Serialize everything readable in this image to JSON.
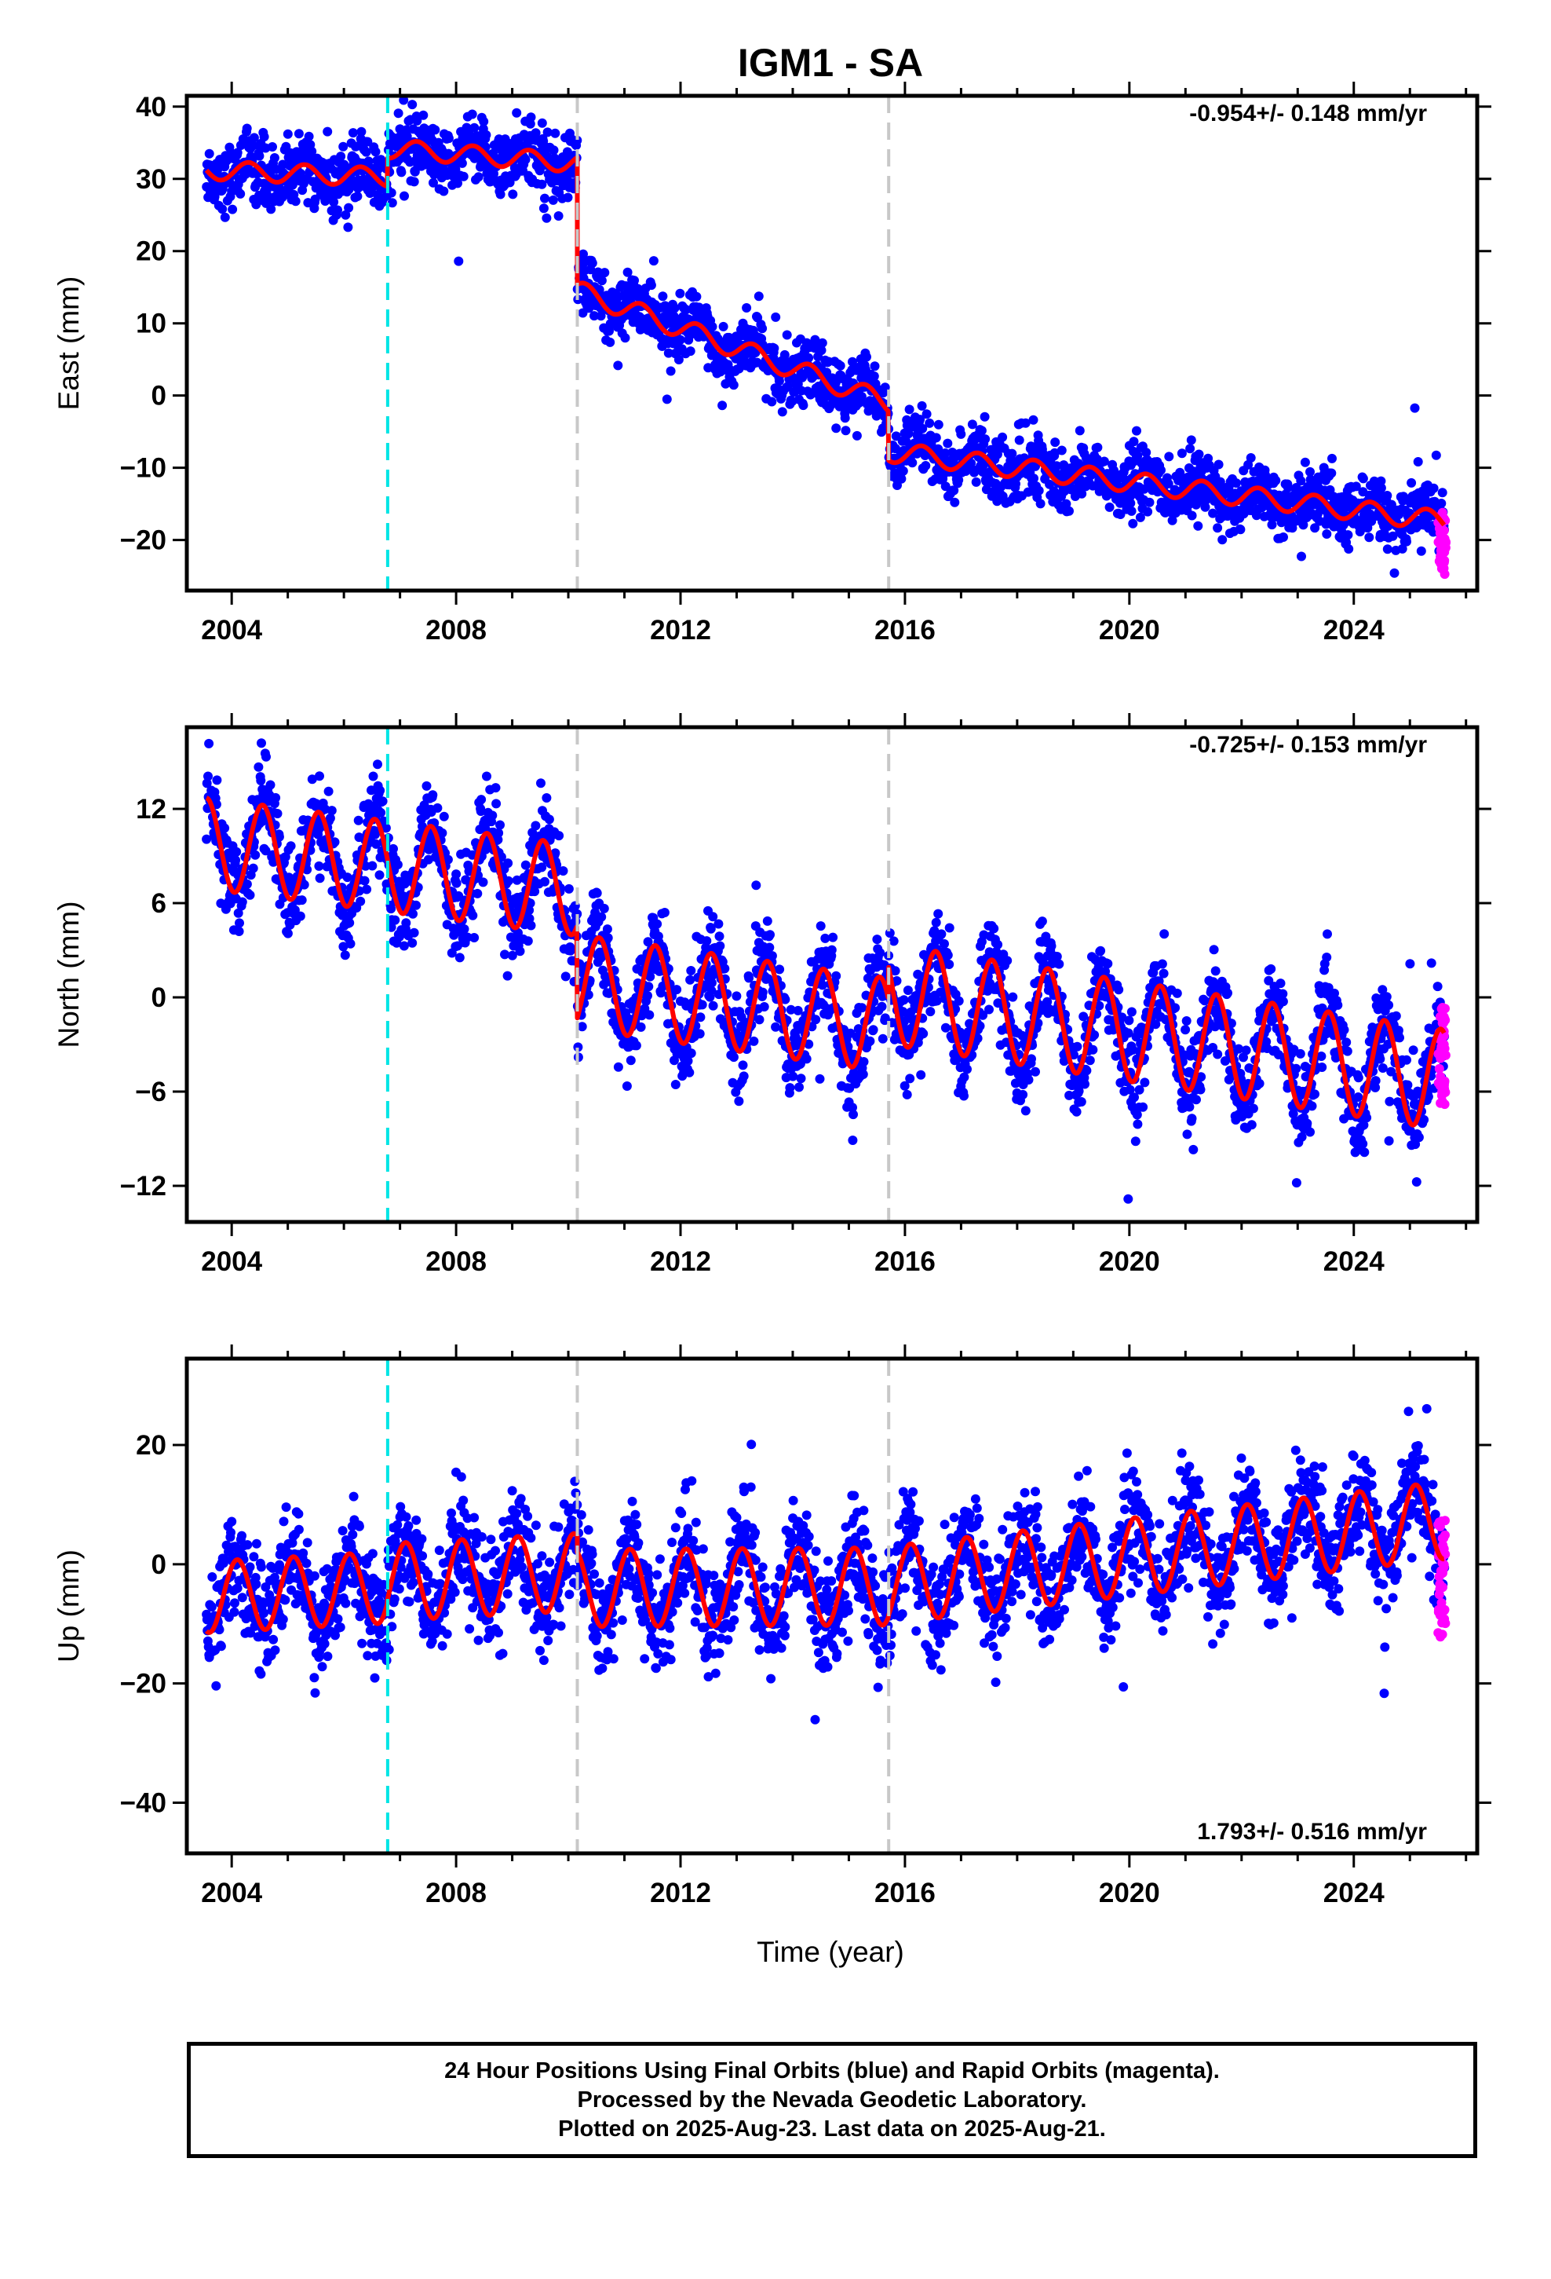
{
  "figure": {
    "title": "IGM1 - SA",
    "xlabel": "Time (year)",
    "footer": [
      "24 Hour Positions Using Final Orbits (blue) and Rapid Orbits (magenta).",
      "Processed by the Nevada Geodetic Laboratory.",
      "Plotted on 2025-Aug-23. Last data on 2025-Aug-21."
    ],
    "colors": {
      "final_orbits": "#0000ff",
      "rapid_orbits": "#ff00ff",
      "model": "#ff0000",
      "antenna_change": "#00e5e5",
      "equipment_change": "#c8c8c8"
    }
  },
  "chart_data": [
    {
      "type": "scatter",
      "ylabel": "East (mm)",
      "rate": "-0.954+/- 0.148 mm/yr",
      "xlim": [
        2003.2,
        2026.2
      ],
      "ylim": [
        -27,
        41.5
      ],
      "xticks": [
        2004,
        2008,
        2012,
        2016,
        2020,
        2024
      ],
      "xtick_labels": [
        "2004",
        "2008",
        "2012",
        "2016",
        "2020",
        "2024"
      ],
      "yticks": [
        -20,
        -10,
        0,
        10,
        20,
        30,
        40
      ],
      "ytick_labels": [
        "−20",
        "−10",
        "0",
        "10",
        "20",
        "30",
        "40"
      ],
      "vlines": [
        {
          "x": 2006.78,
          "style": "antenna"
        },
        {
          "x": 2010.16,
          "style": "equipment"
        },
        {
          "x": 2015.71,
          "style": "equipment"
        }
      ],
      "model_segments": [
        {
          "x0": 2003.55,
          "x1": 2006.78,
          "offset": 31.2,
          "slope": -0.3,
          "amp": 1.3,
          "phase": 0.3
        },
        {
          "x0": 2006.78,
          "x1": 2010.16,
          "offset": 34.2,
          "slope": -0.6,
          "amp": 1.3,
          "phase": 0.3
        },
        {
          "x0": 2010.16,
          "x1": 2015.71,
          "offset": 14.5,
          "slope": -2.8,
          "amp": 1.4,
          "phase": 0.3
        },
        {
          "x0": 2015.71,
          "x1": 2025.62,
          "offset": -7.8,
          "slope": -0.97,
          "amp": 1.4,
          "phase": 0.3
        }
      ],
      "scatter_spread": 2.2,
      "rapid": {
        "x0": 2025.5,
        "x1": 2025.64,
        "y0": -25,
        "y1": -16
      }
    },
    {
      "type": "scatter",
      "ylabel": "North (mm)",
      "rate": "-0.725+/- 0.153 mm/yr",
      "xlim": [
        2003.2,
        2026.2
      ],
      "ylim": [
        -14.3,
        17.2
      ],
      "xticks": [
        2004,
        2008,
        2012,
        2016,
        2020,
        2024
      ],
      "xtick_labels": [
        "2004",
        "2008",
        "2012",
        "2016",
        "2020",
        "2024"
      ],
      "yticks": [
        -12,
        -6,
        0,
        6,
        12
      ],
      "ytick_labels": [
        "−12",
        "−6",
        "0",
        "6",
        "12"
      ],
      "vlines": [
        {
          "x": 2006.78,
          "style": "antenna"
        },
        {
          "x": 2010.16,
          "style": "equipment"
        },
        {
          "x": 2015.71,
          "style": "equipment"
        }
      ],
      "model_segments": [
        {
          "x0": 2003.55,
          "x1": 2010.16,
          "offset": 9.8,
          "slope": -0.45,
          "amp": 2.9,
          "phase": 0.55
        },
        {
          "x0": 2010.16,
          "x1": 2015.71,
          "offset": 1.0,
          "slope": -0.5,
          "amp": 3.0,
          "phase": 0.55
        },
        {
          "x0": 2015.71,
          "x1": 2025.62,
          "offset": 0.2,
          "slope": -0.55,
          "amp": 3.2,
          "phase": 0.55
        }
      ],
      "scatter_spread": 1.5,
      "rapid": {
        "x0": 2025.5,
        "x1": 2025.64,
        "y0": -7,
        "y1": -0.5
      }
    },
    {
      "type": "scatter",
      "ylabel": "Up (mm)",
      "rate": "1.793+/- 0.516 mm/yr",
      "xlim": [
        2003.2,
        2026.2
      ],
      "ylim": [
        -48.5,
        34.5
      ],
      "xticks": [
        2004,
        2008,
        2012,
        2016,
        2020,
        2024
      ],
      "xtick_labels": [
        "2004",
        "2008",
        "2012",
        "2016",
        "2020",
        "2024"
      ],
      "yticks": [
        -40,
        -20,
        0,
        20
      ],
      "ytick_labels": [
        "−40",
        "−20",
        "0",
        "20"
      ],
      "vlines": [
        {
          "x": 2006.78,
          "style": "antenna"
        },
        {
          "x": 2010.16,
          "style": "equipment"
        },
        {
          "x": 2015.71,
          "style": "equipment"
        }
      ],
      "model_segments": [
        {
          "x0": 2003.55,
          "x1": 2006.78,
          "offset": -5.5,
          "slope": 0.5,
          "amp": 6.0,
          "phase": 0.1
        },
        {
          "x0": 2006.78,
          "x1": 2010.16,
          "offset": -3.0,
          "slope": 0.5,
          "amp": 6.5,
          "phase": 0.1
        },
        {
          "x0": 2010.16,
          "x1": 2015.71,
          "offset": -4.0,
          "slope": 0.05,
          "amp": 6.5,
          "phase": 0.1
        },
        {
          "x0": 2015.71,
          "x1": 2025.62,
          "offset": -3.5,
          "slope": 1.1,
          "amp": 6.5,
          "phase": 0.1
        }
      ],
      "scatter_spread": 4.5,
      "rapid": {
        "x0": 2025.5,
        "x1": 2025.64,
        "y0": -13,
        "y1": 8
      }
    }
  ]
}
